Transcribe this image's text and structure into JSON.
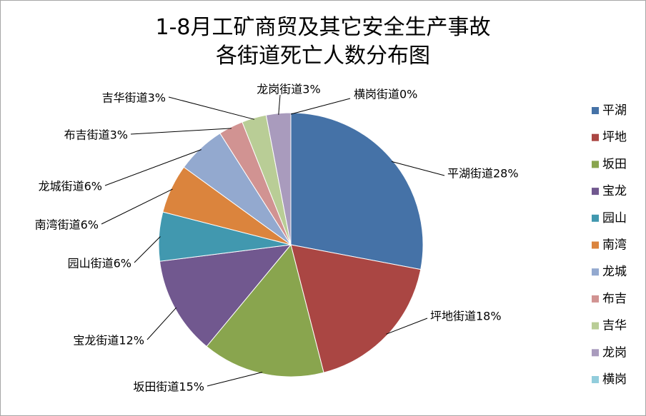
{
  "chart_data": {
    "type": "pie",
    "title_line1": "1-8月工矿商贸及其它安全生产事故",
    "title_line2": "各街道死亡人数分布图",
    "categories": [
      "平湖",
      "坪地",
      "坂田",
      "宝龙",
      "园山",
      "南湾",
      "龙城",
      "布吉",
      "吉华",
      "龙岗",
      "横岗"
    ],
    "values": [
      28,
      18,
      15,
      12,
      6,
      6,
      6,
      3,
      3,
      3,
      0
    ],
    "data_labels": [
      "平湖街道28%",
      "坪地街道18%",
      "坂田街道15%",
      "宝龙街道12%",
      "园山街道6%",
      "南湾街道6%",
      "龙城街道6%",
      "布吉街道3%",
      "吉华街道3%",
      "龙岗街道3%",
      "横岗街道0%"
    ],
    "colors": [
      "#4572a7",
      "#aa4643",
      "#89a54e",
      "#71588f",
      "#4198af",
      "#db843d",
      "#93a9cf",
      "#d19392",
      "#b9cd96",
      "#a99bbd",
      "#92cddc"
    ],
    "legend_position": "right"
  }
}
